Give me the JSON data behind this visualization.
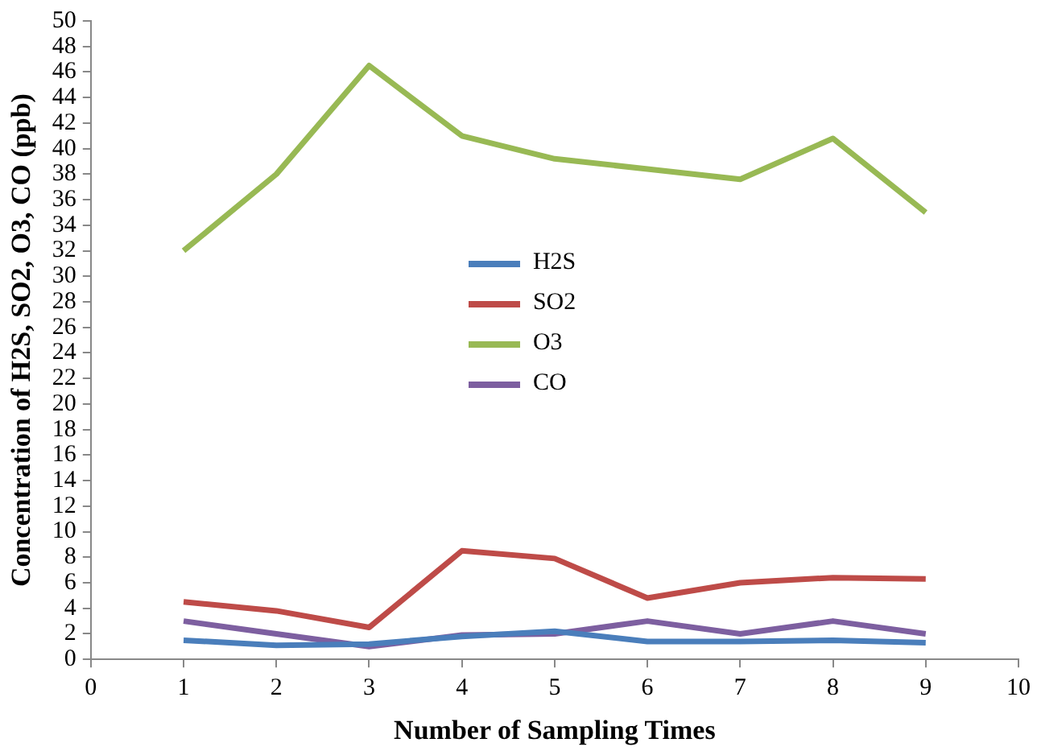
{
  "chart_data": {
    "type": "line",
    "xlabel": "Number of Sampling Times",
    "ylabel": "Concentration of H2S, SO2, O3, CO (ppb)",
    "x": [
      1,
      2,
      3,
      4,
      5,
      6,
      7,
      8,
      9
    ],
    "series": [
      {
        "name": "H2S",
        "color": "#4a7ebb",
        "values": [
          1.5,
          1.1,
          1.2,
          1.8,
          2.2,
          1.4,
          1.4,
          1.5,
          1.3
        ]
      },
      {
        "name": "SO2",
        "color": "#be4b48",
        "values": [
          4.5,
          3.8,
          2.5,
          8.5,
          7.9,
          4.8,
          6.0,
          6.4,
          6.3
        ]
      },
      {
        "name": "O3",
        "color": "#98b954",
        "values": [
          32,
          38,
          46.5,
          41,
          39.2,
          38.4,
          37.6,
          40.8,
          35
        ]
      },
      {
        "name": "CO",
        "color": "#7d5fa0",
        "values": [
          3,
          2,
          1,
          1.9,
          2,
          3,
          2,
          3,
          2
        ]
      }
    ],
    "xlim": [
      0,
      10
    ],
    "xticks": [
      0,
      1,
      2,
      3,
      4,
      5,
      6,
      7,
      8,
      9,
      10
    ],
    "ylim": [
      0,
      50
    ],
    "yticks": [
      0,
      2,
      4,
      6,
      8,
      10,
      12,
      14,
      16,
      18,
      20,
      22,
      24,
      26,
      28,
      30,
      32,
      34,
      36,
      38,
      40,
      42,
      44,
      46,
      48,
      50
    ],
    "grid": false,
    "legend": "center",
    "marker": "none",
    "line_style": "solid"
  }
}
